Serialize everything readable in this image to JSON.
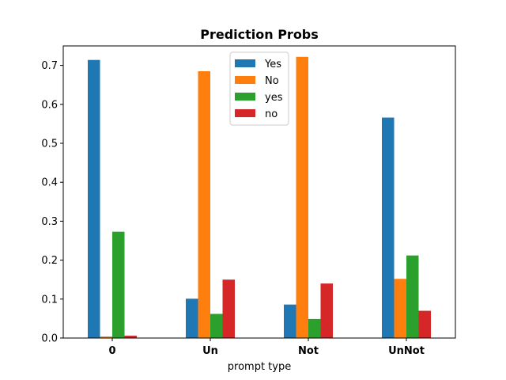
{
  "chart_data": {
    "type": "bar",
    "title": "Prediction Probs",
    "xlabel": "prompt type",
    "ylabel": "",
    "categories": [
      "0",
      "Un",
      "Not",
      "UnNot"
    ],
    "ylim": [
      0,
      0.75
    ],
    "yticks": [
      "0.0",
      "0.1",
      "0.2",
      "0.3",
      "0.4",
      "0.5",
      "0.6",
      "0.7"
    ],
    "legend_position": "top-center",
    "series": [
      {
        "name": "Yes",
        "color": "#1f77b4",
        "values": [
          0.714,
          0.101,
          0.086,
          0.566
        ]
      },
      {
        "name": "No",
        "color": "#ff7f0e",
        "values": [
          0.004,
          0.685,
          0.722,
          0.152
        ]
      },
      {
        "name": "yes",
        "color": "#2ca02c",
        "values": [
          0.273,
          0.062,
          0.049,
          0.212
        ]
      },
      {
        "name": "no",
        "color": "#d62728",
        "values": [
          0.006,
          0.15,
          0.14,
          0.07
        ]
      }
    ]
  }
}
